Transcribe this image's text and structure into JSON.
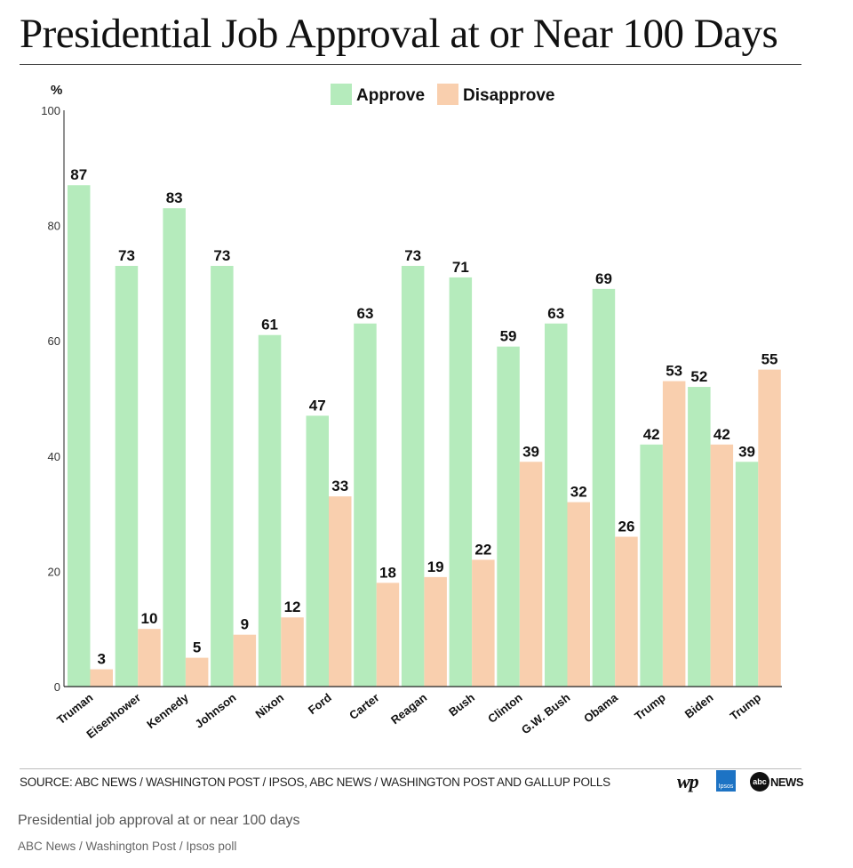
{
  "title": "Presidential Job Approval at or Near 100 Days",
  "source": "SOURCE: ABC NEWS / WASHINGTON POST / IPSOS, ABC NEWS / WASHINGTON POST AND GALLUP POLLS",
  "logos": {
    "wp": "wp",
    "ipsos": "Ipsos",
    "abc": "abc",
    "news": "NEWS"
  },
  "caption": "Presidential job approval at or near 100 days",
  "credit": "ABC News / Washington Post / Ipsos poll",
  "colors": {
    "approve": "#b5ebbc",
    "disapprove": "#f9cfae",
    "axis": "#222222",
    "text": "#111111"
  },
  "chart_data": {
    "type": "bar",
    "title": "Presidential Job Approval at or Near 100 Days",
    "ylabel": "%",
    "xlabel": "",
    "ylim": [
      0,
      100
    ],
    "yticks": [
      0,
      20,
      40,
      60,
      80,
      100
    ],
    "legend": "top-center",
    "categories": [
      "Truman",
      "Eisenhower",
      "Kennedy",
      "Johnson",
      "Nixon",
      "Ford",
      "Carter",
      "Reagan",
      "Bush",
      "Clinton",
      "G.W. Bush",
      "Obama",
      "Trump",
      "Biden",
      "Trump"
    ],
    "series": [
      {
        "name": "Approve",
        "values": [
          87,
          73,
          83,
          73,
          61,
          47,
          63,
          73,
          71,
          59,
          63,
          69,
          42,
          52,
          39
        ]
      },
      {
        "name": "Disapprove",
        "values": [
          3,
          10,
          5,
          9,
          12,
          33,
          18,
          19,
          22,
          39,
          32,
          26,
          53,
          42,
          55
        ]
      }
    ]
  }
}
